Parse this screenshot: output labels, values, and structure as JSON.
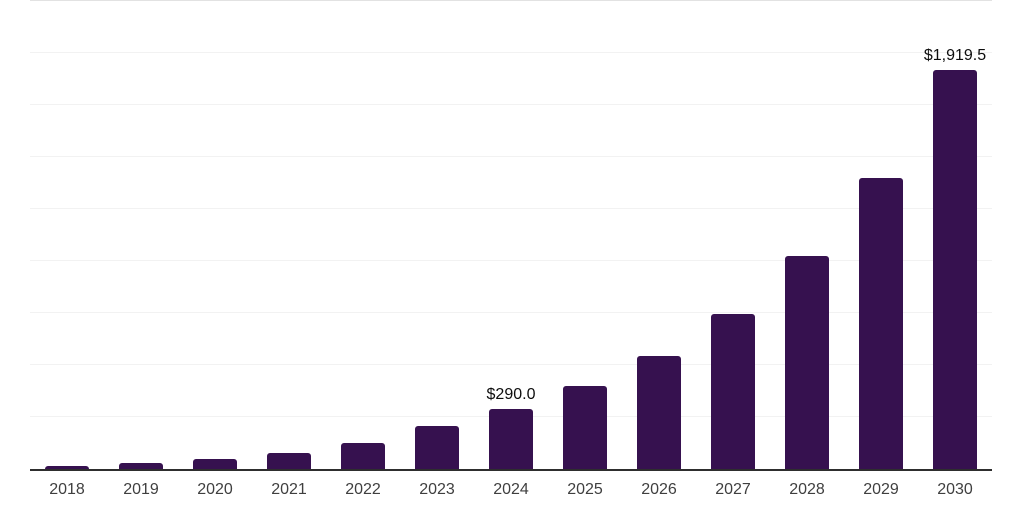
{
  "chart_data": {
    "type": "bar",
    "title": "",
    "xlabel": "",
    "ylabel": "",
    "categories": [
      "2018",
      "2019",
      "2020",
      "2021",
      "2022",
      "2023",
      "2024",
      "2025",
      "2026",
      "2027",
      "2028",
      "2029",
      "2030"
    ],
    "values": [
      15,
      27,
      48,
      77,
      126,
      205,
      290.0,
      397,
      545,
      746,
      1022,
      1401,
      1919.5
    ],
    "labels": [
      null,
      null,
      null,
      null,
      null,
      null,
      "$290.0",
      null,
      null,
      null,
      null,
      null,
      "$1,919.5"
    ],
    "ylim": [
      0,
      2250
    ],
    "gridline_step": 250,
    "grid": "horizontal",
    "legend": "none"
  },
  "colors": {
    "bar": "#36114F",
    "axis_line": "#2e2e2e",
    "gridline": "#f2f2f2",
    "top_gridline": "#e2e2e2",
    "tick_label": "#3f3f3f",
    "data_label": "#0d0d0d",
    "background": "#ffffff"
  }
}
